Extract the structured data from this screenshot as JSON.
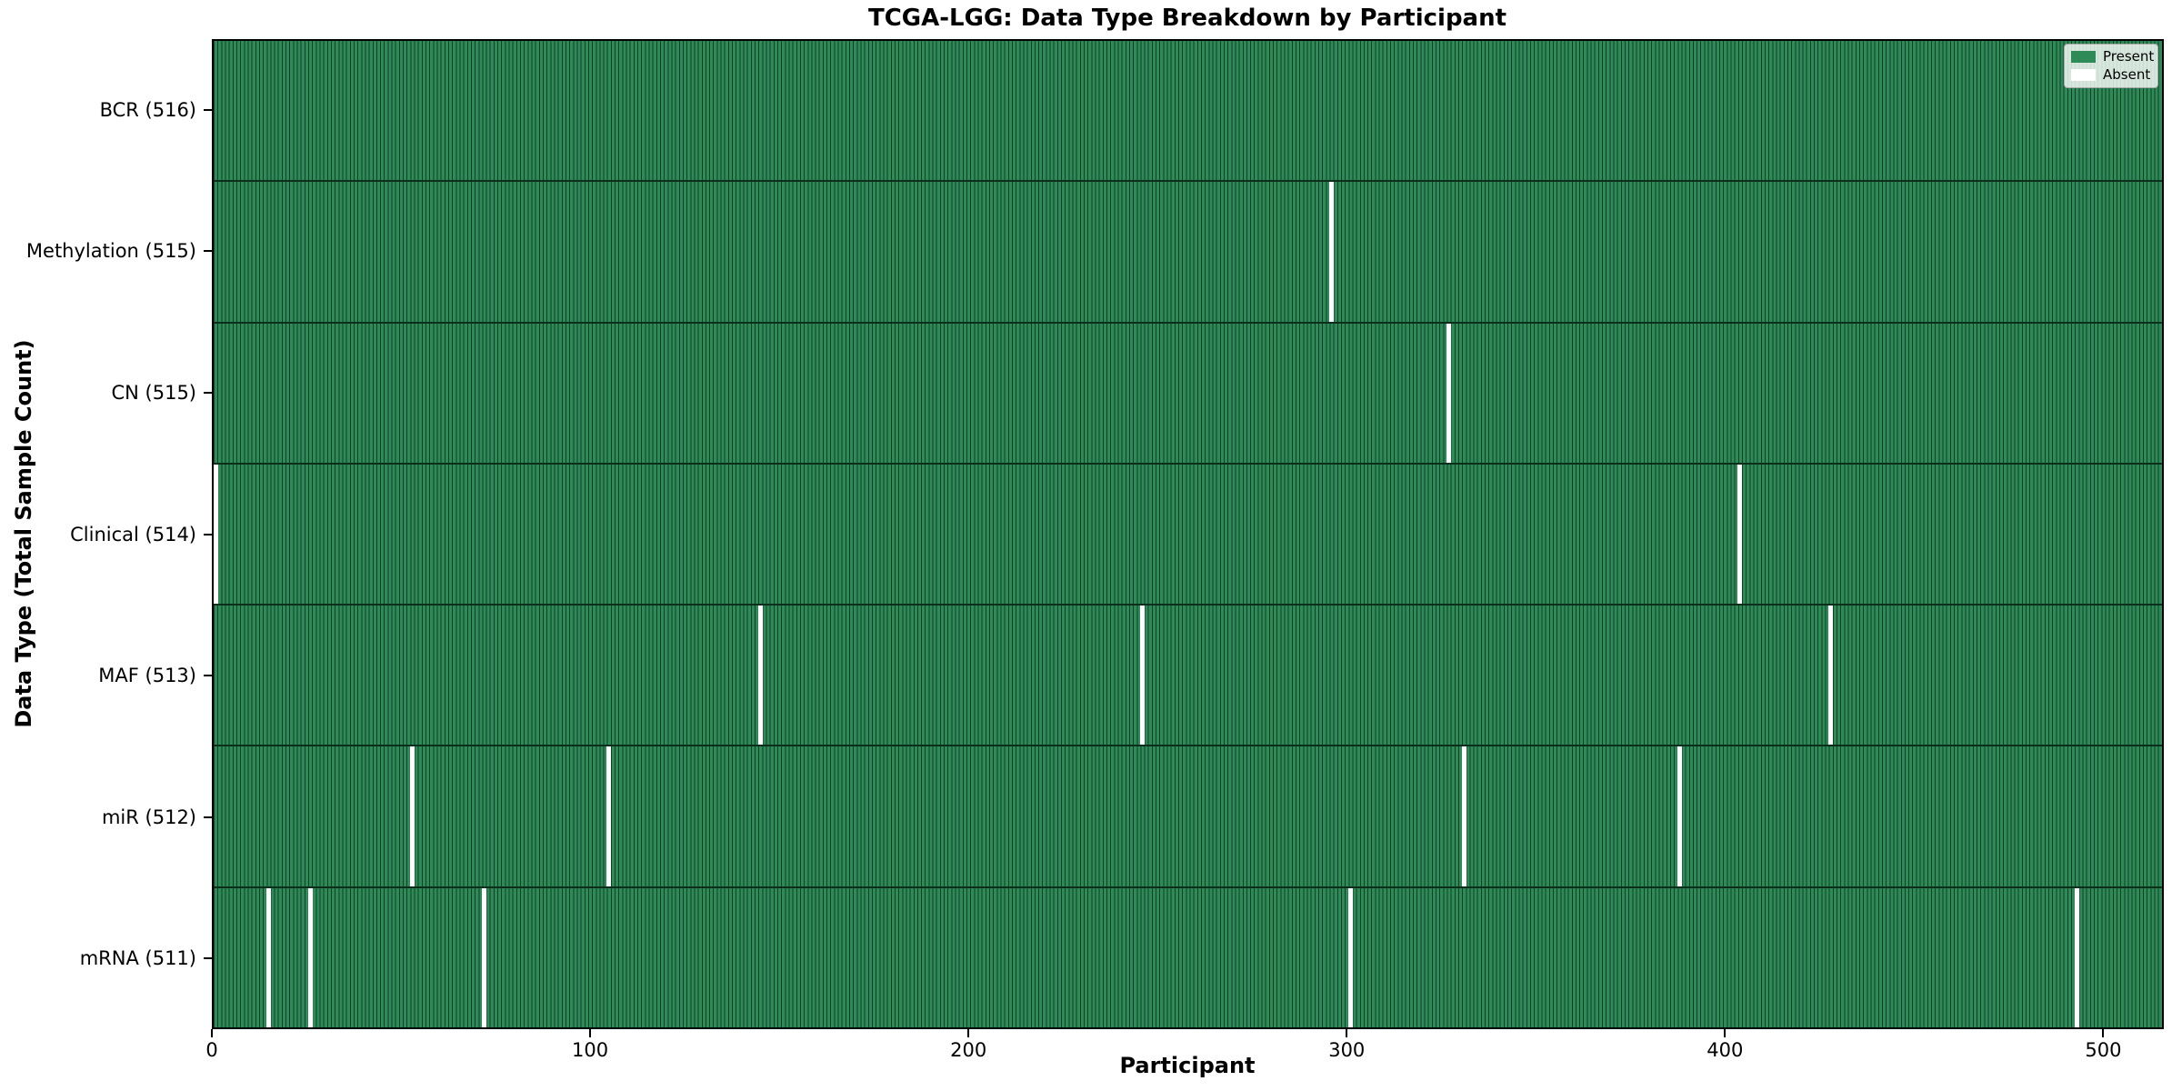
{
  "figure": {
    "kind": "matplotlib-style presence heatmap"
  },
  "colors": {
    "present": "#2e8b57",
    "absent": "#ffffff",
    "cell_edge": "#133f27",
    "row_separator": "#0c2f1c",
    "spine": "#000000",
    "legend_background": "rgba(255,255,255,0.8)",
    "legend_border": "#a8a8a8"
  },
  "chart_data": {
    "type": "heatmap",
    "title": "TCGA-LGG: Data Type Breakdown by Participant",
    "xlabel": "Participant",
    "ylabel": "Data Type (Total Sample Count)",
    "x_range": [
      0,
      516
    ],
    "x_ticks": [
      0,
      100,
      200,
      300,
      400,
      500
    ],
    "n_participants": 516,
    "grid": false,
    "legend_position": "upper right",
    "legend": [
      {
        "label": "Present",
        "color": "#2e8b57"
      },
      {
        "label": "Absent",
        "color": "#ffffff"
      }
    ],
    "rows": [
      {
        "data_type": "BCR",
        "label": "BCR (516)",
        "present_count": 516,
        "absent_participants": []
      },
      {
        "data_type": "Methylation",
        "label": "Methylation (515)",
        "present_count": 515,
        "absent_participants": [
          295
        ]
      },
      {
        "data_type": "CN",
        "label": "CN (515)",
        "present_count": 515,
        "absent_participants": [
          326
        ]
      },
      {
        "data_type": "Clinical",
        "label": "Clinical (514)",
        "present_count": 514,
        "absent_participants": [
          0,
          403
        ]
      },
      {
        "data_type": "MAF",
        "label": "MAF (513)",
        "present_count": 513,
        "absent_participants": [
          144,
          245,
          427
        ]
      },
      {
        "data_type": "miR",
        "label": "miR (512)",
        "present_count": 512,
        "absent_participants": [
          52,
          104,
          330,
          387
        ]
      },
      {
        "data_type": "mRNA",
        "label": "mRNA (511)",
        "present_count": 511,
        "absent_participants": [
          14,
          25,
          71,
          300,
          492
        ]
      }
    ]
  }
}
